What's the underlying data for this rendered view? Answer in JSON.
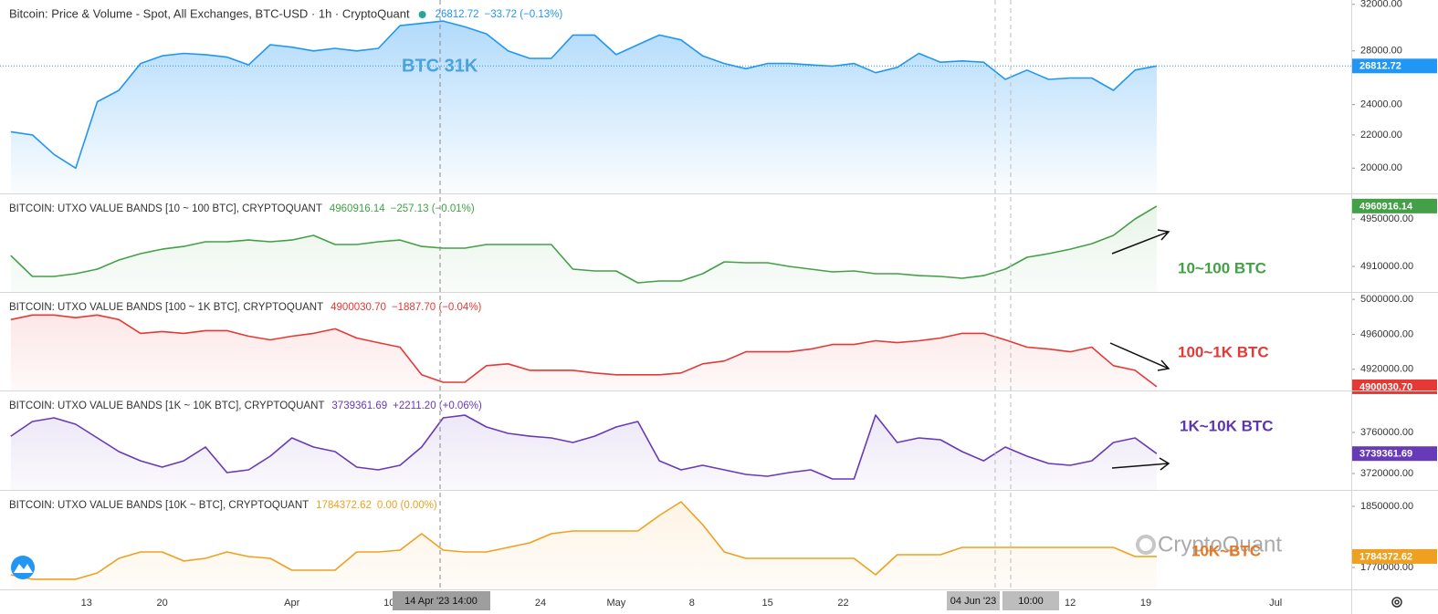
{
  "chart_data": {
    "type": "line",
    "xlim": [
      "2023-03-05",
      "2023-07-08"
    ],
    "xticks": [
      {
        "value": "2023-03-13",
        "label": "13"
      },
      {
        "value": "2023-03-20",
        "label": "20"
      },
      {
        "value": "2023-04-01",
        "label": "Apr"
      },
      {
        "value": "2023-04-10",
        "label": "10"
      },
      {
        "value": "2023-04-24",
        "label": "24"
      },
      {
        "value": "2023-05-01",
        "label": "May"
      },
      {
        "value": "2023-05-08",
        "label": "8"
      },
      {
        "value": "2023-05-15",
        "label": "15"
      },
      {
        "value": "2023-05-22",
        "label": "22"
      },
      {
        "value": "2023-06-12",
        "label": "12"
      },
      {
        "value": "2023-06-19",
        "label": "19"
      },
      {
        "value": "2023-07-01",
        "label": "Jul"
      }
    ],
    "crosshair_labels": [
      "14 Apr '23  14:00",
      "04 Jun '23",
      "10:00"
    ],
    "x": [
      "2023-03-06",
      "2023-03-08",
      "2023-03-10",
      "2023-03-12",
      "2023-03-14",
      "2023-03-16",
      "2023-03-18",
      "2023-03-20",
      "2023-03-22",
      "2023-03-24",
      "2023-03-26",
      "2023-03-28",
      "2023-03-30",
      "2023-04-01",
      "2023-04-03",
      "2023-04-05",
      "2023-04-07",
      "2023-04-09",
      "2023-04-11",
      "2023-04-13",
      "2023-04-15",
      "2023-04-17",
      "2023-04-19",
      "2023-04-21",
      "2023-04-23",
      "2023-04-25",
      "2023-04-27",
      "2023-04-29",
      "2023-05-01",
      "2023-05-03",
      "2023-05-05",
      "2023-05-07",
      "2023-05-09",
      "2023-05-11",
      "2023-05-13",
      "2023-05-15",
      "2023-05-17",
      "2023-05-19",
      "2023-05-21",
      "2023-05-23",
      "2023-05-25",
      "2023-05-27",
      "2023-05-29",
      "2023-05-31",
      "2023-06-02",
      "2023-06-04",
      "2023-06-06",
      "2023-06-08",
      "2023-06-10",
      "2023-06-12",
      "2023-06-14",
      "2023-06-16",
      "2023-06-18",
      "2023-06-20"
    ],
    "panels": [
      {
        "title": "Bitcoin: Price & Volume - Spot, All Exchanges, BTC-USD · 1h · CryptoQuant",
        "color": "#2196f3",
        "last_label": "26812.72",
        "change": "−33.72 (−0.13%)",
        "log": true,
        "ylim": [
          18600,
          32400
        ],
        "yticks": [
          {
            "value": 20000,
            "label": "20000.00"
          },
          {
            "value": 22000,
            "label": "22000.00"
          },
          {
            "value": 24000,
            "label": "24000.00"
          },
          {
            "value": 28000,
            "label": "28000.00"
          },
          {
            "value": 32000,
            "label": "32000.00"
          }
        ],
        "annotation": "BTC 31K",
        "values": [
          22200,
          22000,
          20800,
          20000,
          24200,
          25000,
          27000,
          27600,
          27800,
          27700,
          27500,
          26900,
          28500,
          28300,
          28000,
          28200,
          28000,
          28200,
          30100,
          30300,
          30500,
          30000,
          29400,
          28000,
          27400,
          27400,
          29300,
          29300,
          27700,
          28500,
          29300,
          28900,
          27600,
          27000,
          26600,
          27000,
          27000,
          26900,
          26800,
          27000,
          26300,
          26700,
          27800,
          27100,
          27200,
          27100,
          25800,
          26500,
          25800,
          25900,
          25900,
          25000,
          26500,
          26812.72
        ]
      },
      {
        "title": "BITCOIN: UTXO VALUE BANDS [10 ~ 100 BTC], CRYPTOQUANT",
        "color": "#43a047",
        "last_label": "4960916.14",
        "change": "−257.13 (−0.01%)",
        "ylim": [
          4888500,
          4970800
        ],
        "yticks": [
          {
            "value": 4910000,
            "label": "4910000.00"
          },
          {
            "value": 4950000,
            "label": "4950000.00"
          }
        ],
        "annotation": "10~100 BTC",
        "values": [
          4919200,
          4901600,
          4901600,
          4903900,
          4907700,
          4915400,
          4920800,
          4924600,
          4926900,
          4930800,
          4930800,
          4932300,
          4930800,
          4932300,
          4936200,
          4928500,
          4928500,
          4930800,
          4932300,
          4926900,
          4925400,
          4925400,
          4928500,
          4928500,
          4928500,
          4928500,
          4907700,
          4906200,
          4906200,
          4896200,
          4897700,
          4897700,
          4903900,
          4913900,
          4913100,
          4913100,
          4910000,
          4907700,
          4905400,
          4906200,
          4903900,
          4903900,
          4902300,
          4901600,
          4900000,
          4902300,
          4907700,
          4917700,
          4920800,
          4924600,
          4929200,
          4936200,
          4950000,
          4960916.14
        ]
      },
      {
        "title": "BITCOIN: UTXO VALUE BANDS [100 ~ 1K BTC], CRYPTOQUANT",
        "color": "#e53935",
        "last_label": "4900030.70",
        "change": "−1887.70 (−0.04%)",
        "ylim": [
          4895800,
          5007400
        ],
        "yticks": [
          {
            "value": 4920000,
            "label": "4920000.00"
          },
          {
            "value": 4960000,
            "label": "4960000.00"
          },
          {
            "value": 5000000,
            "label": "5000000.00"
          }
        ],
        "annotation": "100~1K BTC",
        "values": [
          4976800,
          4982100,
          4982100,
          4979000,
          4982100,
          4976800,
          4961100,
          4963200,
          4961100,
          4964200,
          4964200,
          4957900,
          4953700,
          4957900,
          4961100,
          4966300,
          4955800,
          4950500,
          4945300,
          4913700,
          4905200,
          4905200,
          4924200,
          4926300,
          4918900,
          4918900,
          4918900,
          4915800,
          4913700,
          4913700,
          4913700,
          4915800,
          4926300,
          4929500,
          4940000,
          4940000,
          4940000,
          4943200,
          4948400,
          4948400,
          4952600,
          4950500,
          4952600,
          4955800,
          4961100,
          4961100,
          4953700,
          4945300,
          4943200,
          4940000,
          4945300,
          4924200,
          4918900,
          4900030.7
        ]
      },
      {
        "title": "BITCOIN: UTXO VALUE BANDS [1K ~ 10K BTC], CRYPTOQUANT",
        "color": "#673ab7",
        "last_label": "3739361.69",
        "change": "+2211.20 (+0.06%)",
        "ylim": [
          3704000,
          3800000
        ],
        "yticks": [
          {
            "value": 3720000,
            "label": "3720000.00"
          },
          {
            "value": 3760000,
            "label": "3760000.00"
          }
        ],
        "annotation": "1K~10K BTC",
        "values": [
          3756400,
          3770700,
          3774200,
          3768000,
          3754700,
          3741300,
          3732400,
          3726200,
          3732400,
          3745800,
          3720900,
          3723600,
          3736900,
          3754700,
          3745800,
          3741300,
          3726200,
          3723600,
          3728000,
          3745800,
          3774200,
          3776900,
          3765300,
          3759100,
          3756400,
          3754700,
          3750200,
          3756400,
          3765300,
          3770700,
          3732400,
          3723600,
          3728000,
          3723600,
          3719100,
          3717300,
          3720900,
          3723600,
          3714700,
          3714700,
          3776900,
          3750200,
          3754700,
          3752900,
          3741300,
          3732400,
          3745800,
          3736900,
          3729800,
          3728000,
          3732400,
          3750200,
          3754700,
          3739361.69
        ]
      },
      {
        "title": "BITCOIN: UTXO VALUE BANDS [10K ~ BTC], CRYPTOQUANT",
        "color": "#f0a020",
        "last_label": "1784372.62",
        "change": "0.00 (0.00%)",
        "ylim": [
          1741300,
          1870300
        ],
        "yticks": [
          {
            "value": 1770000,
            "label": "1770000.00"
          },
          {
            "value": 1850000,
            "label": "1850000.00"
          }
        ],
        "annotation": "10K~BTC",
        "values": [
          1760400,
          1754500,
          1754500,
          1754500,
          1762800,
          1781900,
          1790300,
          1790300,
          1778400,
          1781900,
          1790300,
          1784300,
          1781900,
          1766400,
          1766400,
          1766400,
          1790300,
          1790300,
          1792700,
          1814200,
          1792700,
          1790300,
          1790300,
          1796300,
          1802200,
          1814200,
          1817800,
          1817800,
          1817800,
          1817800,
          1838100,
          1856000,
          1826100,
          1790300,
          1781900,
          1781900,
          1781900,
          1781900,
          1781900,
          1781900,
          1760400,
          1786700,
          1786700,
          1786700,
          1796300,
          1796300,
          1796300,
          1796300,
          1796300,
          1796300,
          1796300,
          1796300,
          1784300,
          1784372.62
        ]
      }
    ]
  }
}
